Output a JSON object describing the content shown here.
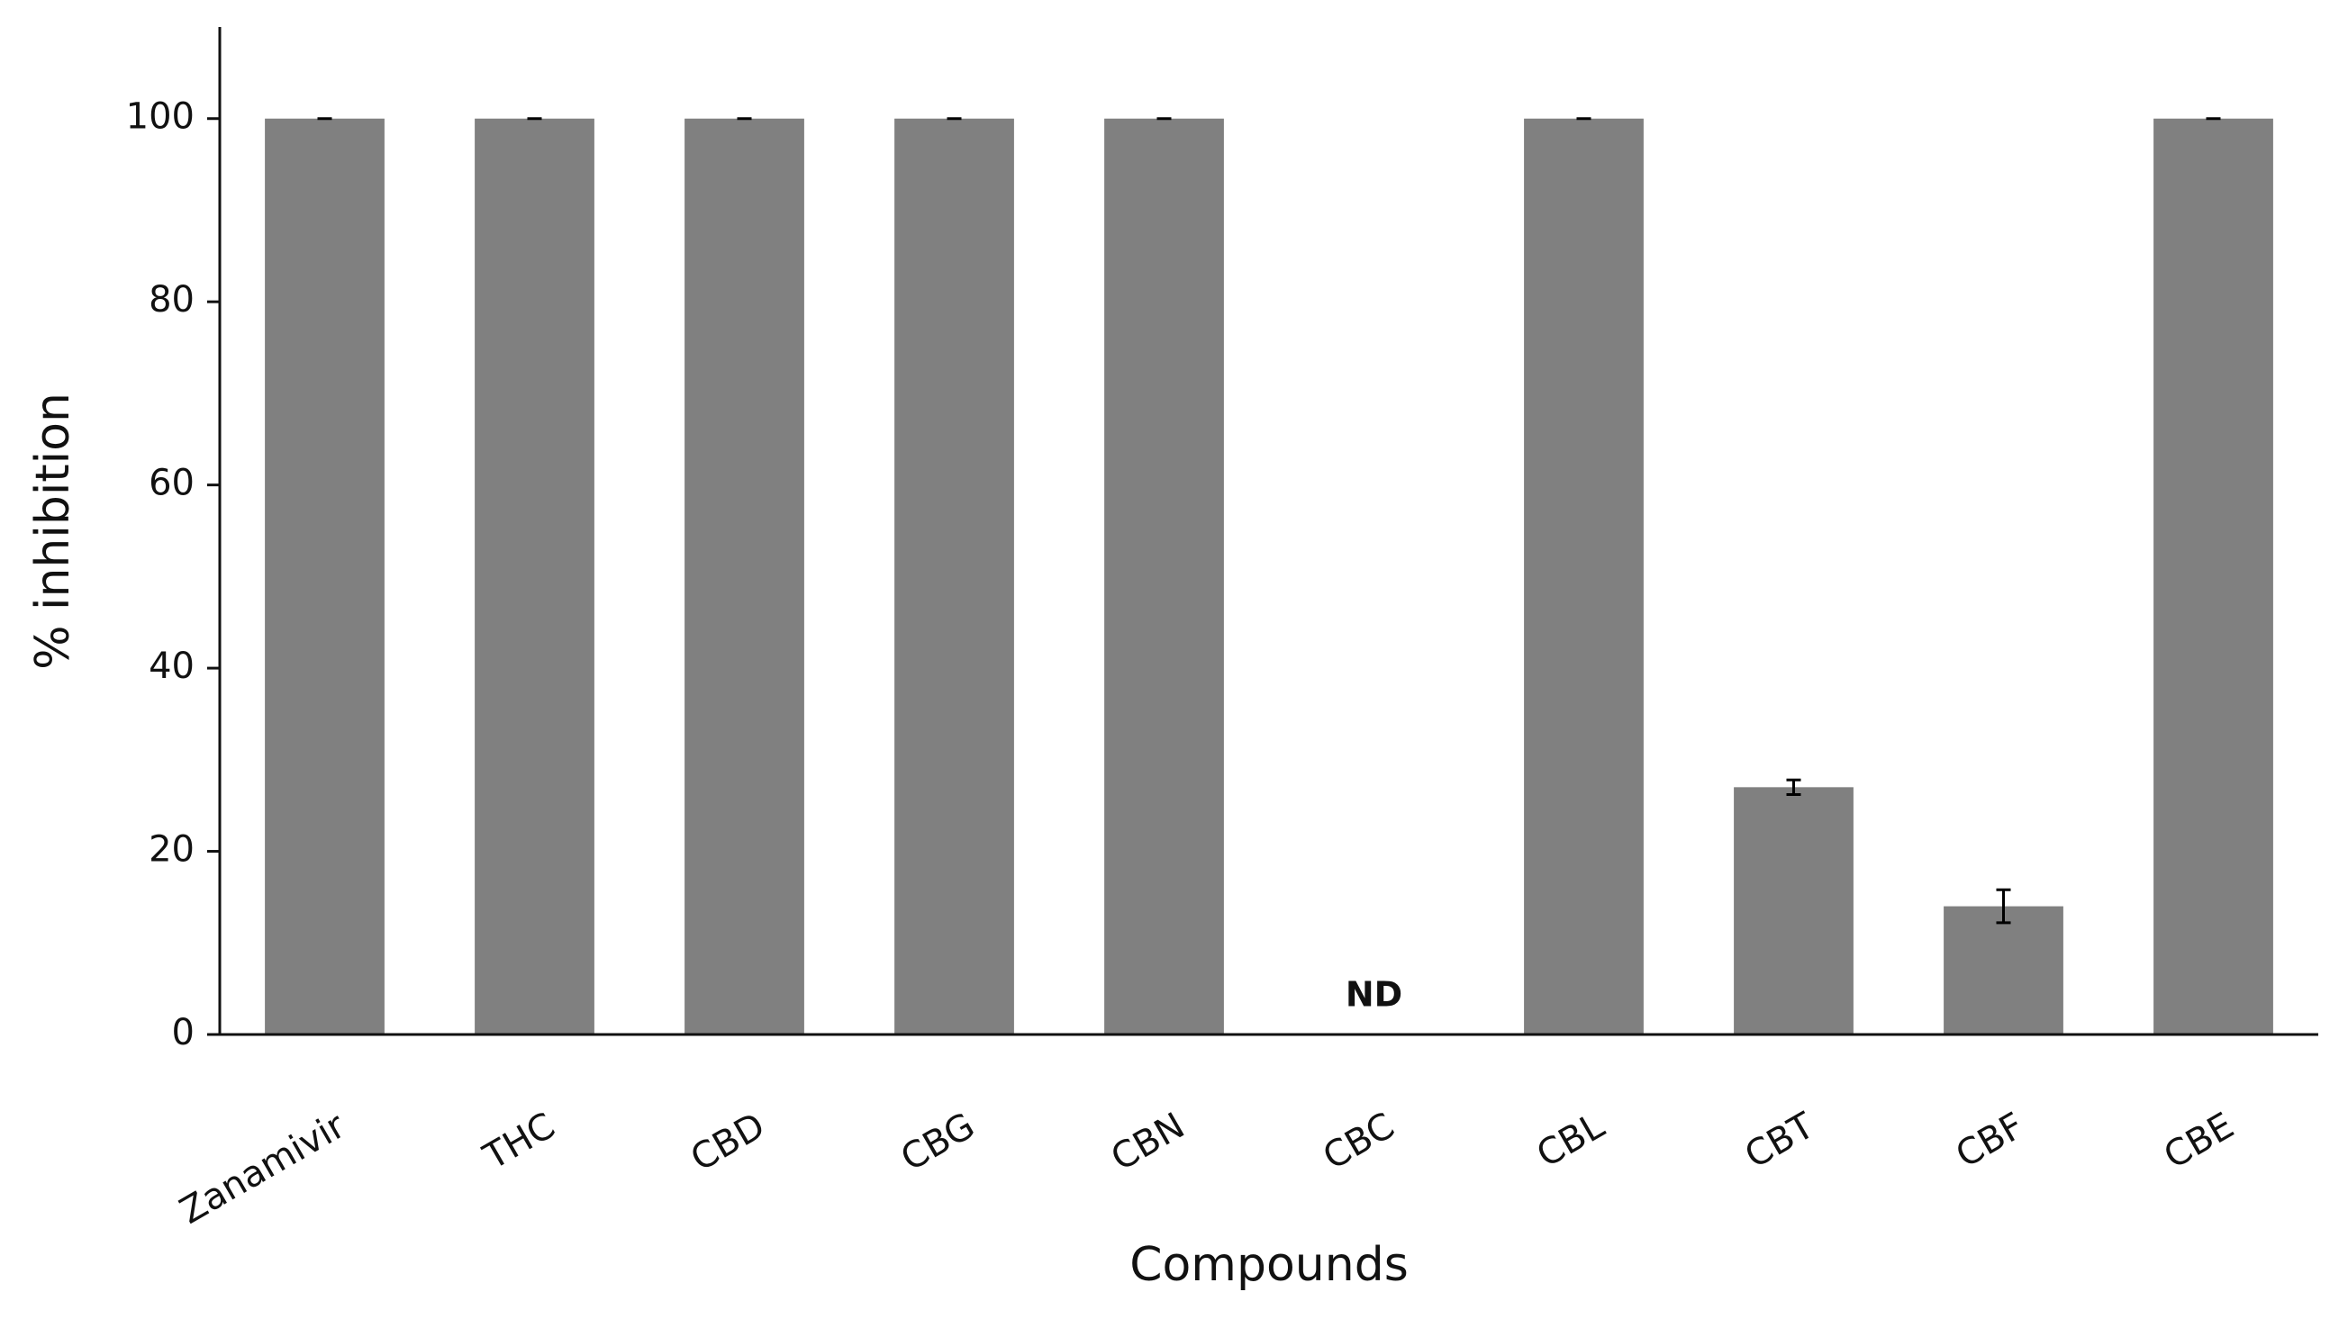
{
  "chart_data": {
    "type": "bar",
    "x_label": "Compounds",
    "y_label": "% inhibition",
    "categories": [
      "Zanamivir",
      "THC",
      "CBD",
      "CBG",
      "CBN",
      "CBC",
      "CBL",
      "CBT",
      "CBF",
      "CBE"
    ],
    "values": [
      100,
      100,
      100,
      100,
      100,
      null,
      100,
      27,
      14,
      100
    ],
    "errors": [
      0,
      0,
      0,
      0,
      0,
      null,
      0,
      0.8,
      1.8,
      0
    ],
    "value_labels": [
      null,
      null,
      null,
      null,
      null,
      "ND",
      null,
      null,
      null,
      null
    ],
    "color": "#808080",
    "ylim": [
      0,
      110
    ],
    "yticks": [
      0,
      20,
      40,
      60,
      80,
      100
    ],
    "grid": false
  }
}
